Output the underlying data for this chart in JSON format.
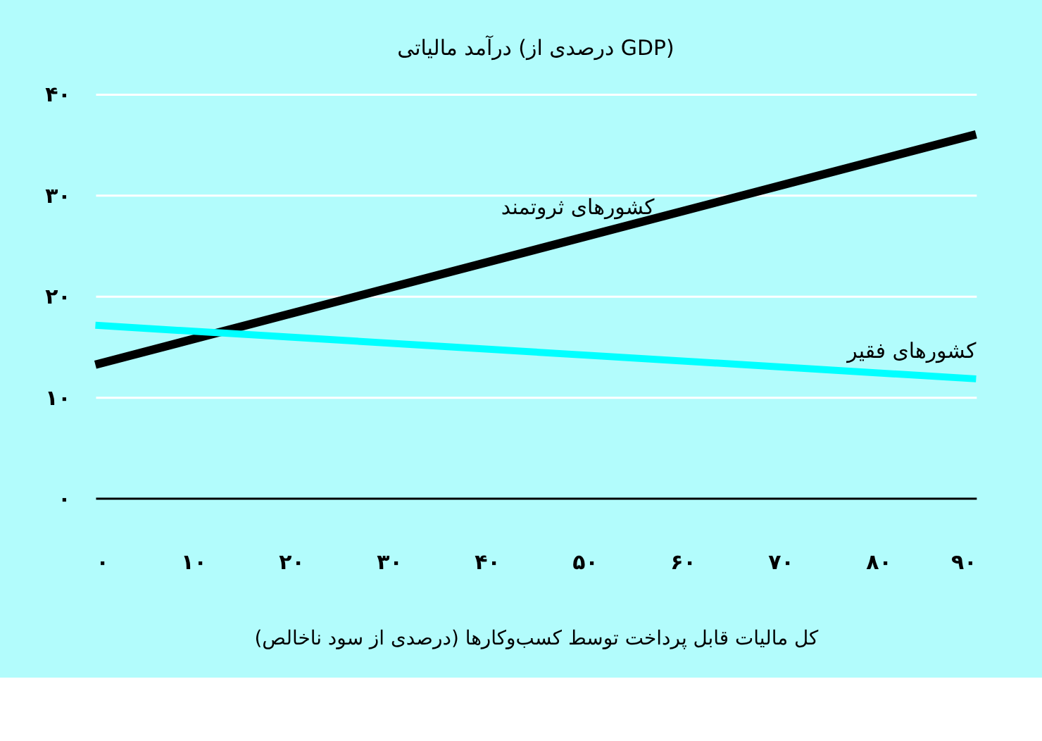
{
  "chart_data": {
    "type": "line",
    "title": "درآمد مالیاتی (درصدی از GDP)",
    "xlabel": "کل مالیات قابل پرداخت توسط کسب‌وکارها (درصدی از سود ناخالص)",
    "x": [
      0,
      90
    ],
    "series": [
      {
        "name": "کشورهای ثروتمند",
        "color": "#000000",
        "values": [
          13.2,
          36.0
        ]
      },
      {
        "name": "کشورهای فقیر",
        "color": "#00ffff",
        "values": [
          17.1,
          11.8
        ]
      }
    ],
    "xlim": [
      0,
      90
    ],
    "ylim": [
      0,
      40
    ],
    "xticks": [
      {
        "value": 0,
        "label": "۰"
      },
      {
        "value": 10,
        "label": "۱۰"
      },
      {
        "value": 20,
        "label": "۲۰"
      },
      {
        "value": 30,
        "label": "۳۰"
      },
      {
        "value": 40,
        "label": "۴۰"
      },
      {
        "value": 50,
        "label": "۵۰"
      },
      {
        "value": 60,
        "label": "۶۰"
      },
      {
        "value": 70,
        "label": "۷۰"
      },
      {
        "value": 80,
        "label": "۸۰"
      },
      {
        "value": 90,
        "label": "۹۰"
      }
    ],
    "yticks": [
      {
        "value": 0,
        "label": "۰"
      },
      {
        "value": 10,
        "label": "۱۰"
      },
      {
        "value": 20,
        "label": "۲۰"
      },
      {
        "value": 30,
        "label": "۳۰"
      },
      {
        "value": 40,
        "label": "۴۰"
      }
    ],
    "grid": "y",
    "marker": "none",
    "line_style": "solid"
  }
}
